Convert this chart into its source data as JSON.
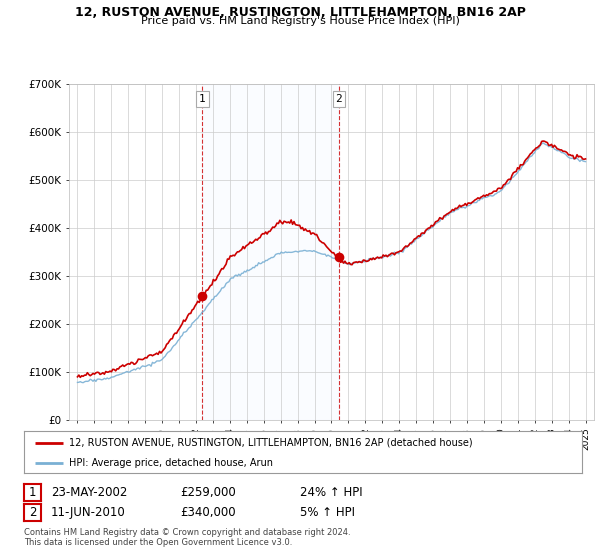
{
  "title1": "12, RUSTON AVENUE, RUSTINGTON, LITTLEHAMPTON, BN16 2AP",
  "title2": "Price paid vs. HM Land Registry's House Price Index (HPI)",
  "legend_line1": "12, RUSTON AVENUE, RUSTINGTON, LITTLEHAMPTON, BN16 2AP (detached house)",
  "legend_line2": "HPI: Average price, detached house, Arun",
  "sale1_date": "23-MAY-2002",
  "sale1_price": "£259,000",
  "sale1_hpi": "24% ↑ HPI",
  "sale2_date": "11-JUN-2010",
  "sale2_price": "£340,000",
  "sale2_hpi": "5% ↑ HPI",
  "copyright": "Contains HM Land Registry data © Crown copyright and database right 2024.\nThis data is licensed under the Open Government Licence v3.0.",
  "red_color": "#cc0000",
  "blue_color": "#7ab0d4",
  "fill_color": "#ddeeff",
  "background_color": "#ffffff",
  "sale1_x": 2002.38,
  "sale2_x": 2010.44,
  "sale1_price_val": 259000,
  "sale2_price_val": 340000,
  "ylim_min": 0,
  "ylim_max": 700000,
  "xlim_min": 1994.5,
  "xlim_max": 2025.5
}
